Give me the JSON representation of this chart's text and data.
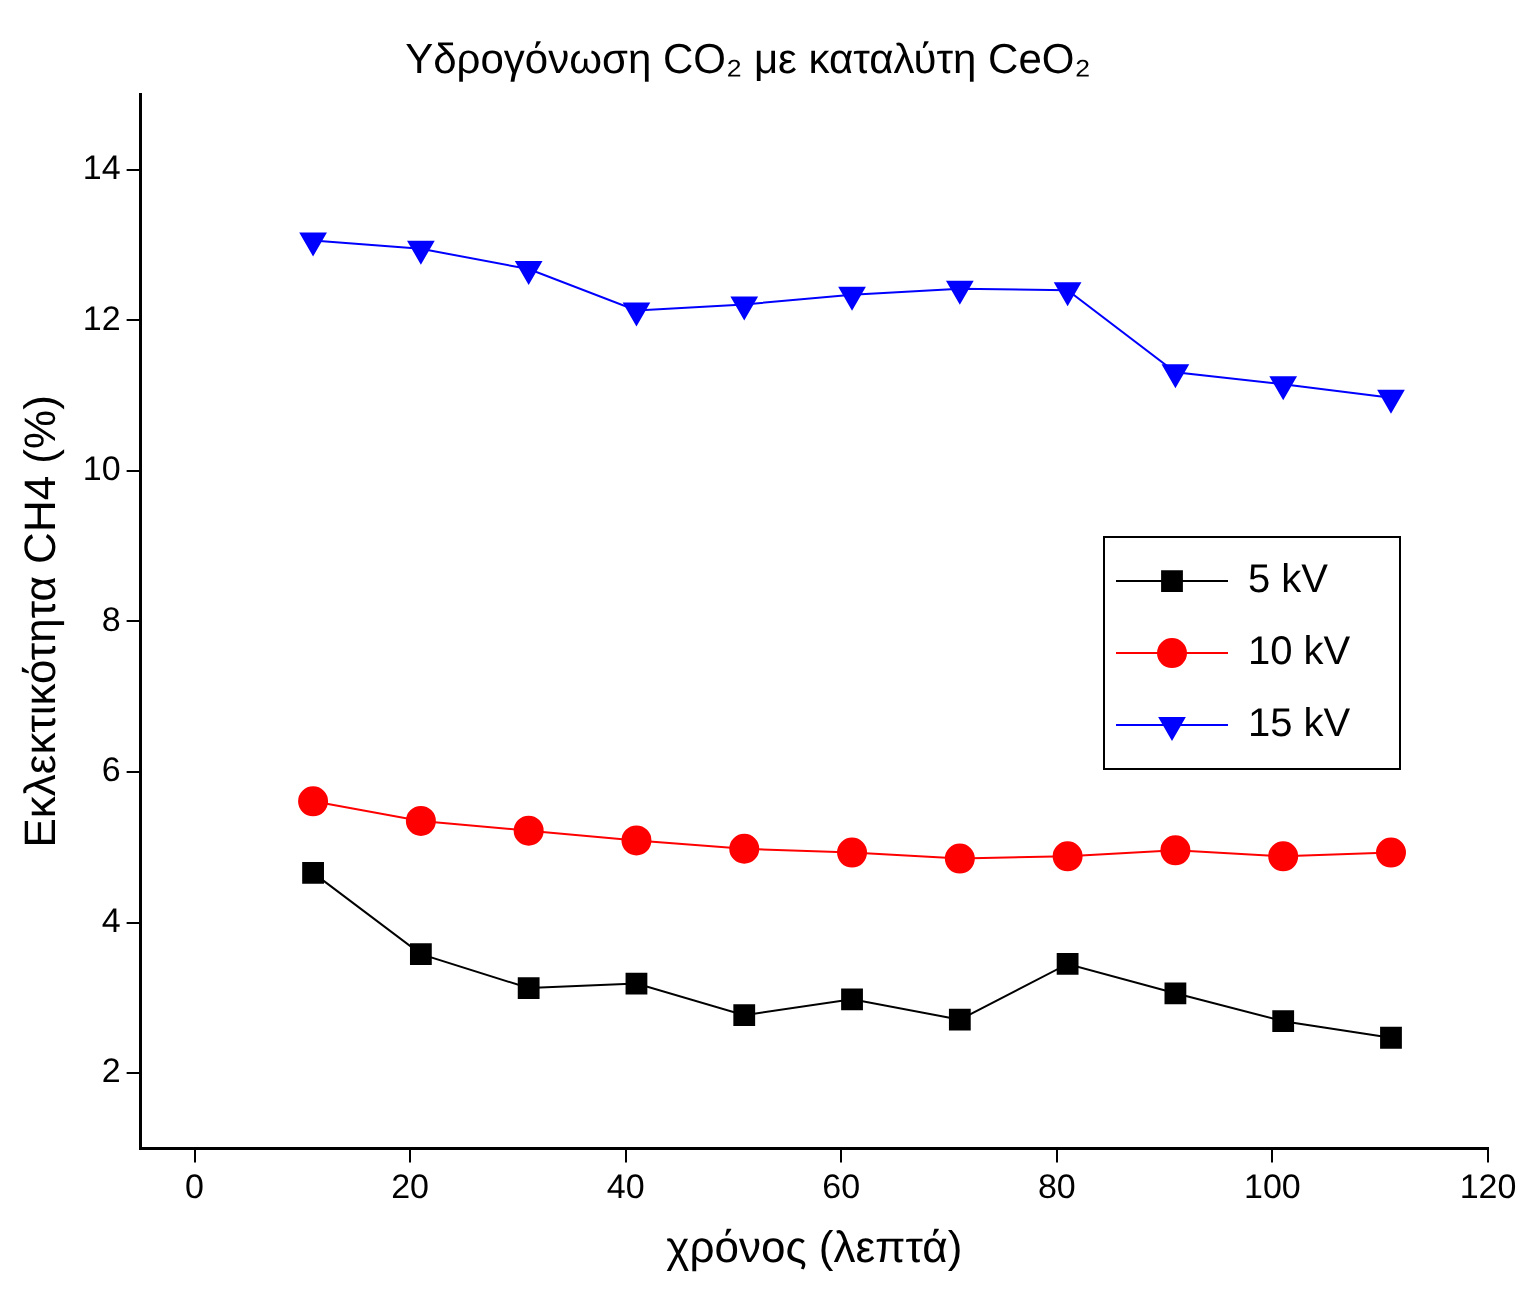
{
  "chart_data": {
    "type": "line",
    "title": "Υδρογόνωση CO₂ με καταλύτη CeO₂",
    "xlabel": "χρόνος (λεπτά)",
    "ylabel": "Εκλεκτικότητα CH4 (%)",
    "x": [
      11,
      21,
      31,
      41,
      51,
      61,
      71,
      81,
      91,
      101,
      111
    ],
    "series": [
      {
        "name": "5 kV",
        "color": "#000000",
        "marker": "square",
        "values": [
          4.66,
          3.58,
          3.13,
          3.19,
          2.77,
          2.98,
          2.71,
          3.45,
          3.06,
          2.69,
          2.47
        ]
      },
      {
        "name": "10 kV",
        "color": "#ff0000",
        "marker": "circle",
        "values": [
          5.61,
          5.35,
          5.22,
          5.09,
          4.98,
          4.93,
          4.85,
          4.88,
          4.96,
          4.88,
          4.93
        ]
      },
      {
        "name": "15 kV",
        "color": "#0000ff",
        "marker": "triangle",
        "values": [
          13.06,
          12.95,
          12.68,
          12.13,
          12.21,
          12.34,
          12.42,
          12.4,
          11.31,
          11.15,
          10.97
        ]
      }
    ],
    "xlim": [
      -5,
      120
    ],
    "xticks": [
      0,
      20,
      40,
      60,
      80,
      100,
      120
    ],
    "ylim": [
      1,
      15
    ],
    "yticks": [
      2,
      4,
      6,
      8,
      10,
      12,
      14
    ],
    "grid": false,
    "legend": "right"
  }
}
